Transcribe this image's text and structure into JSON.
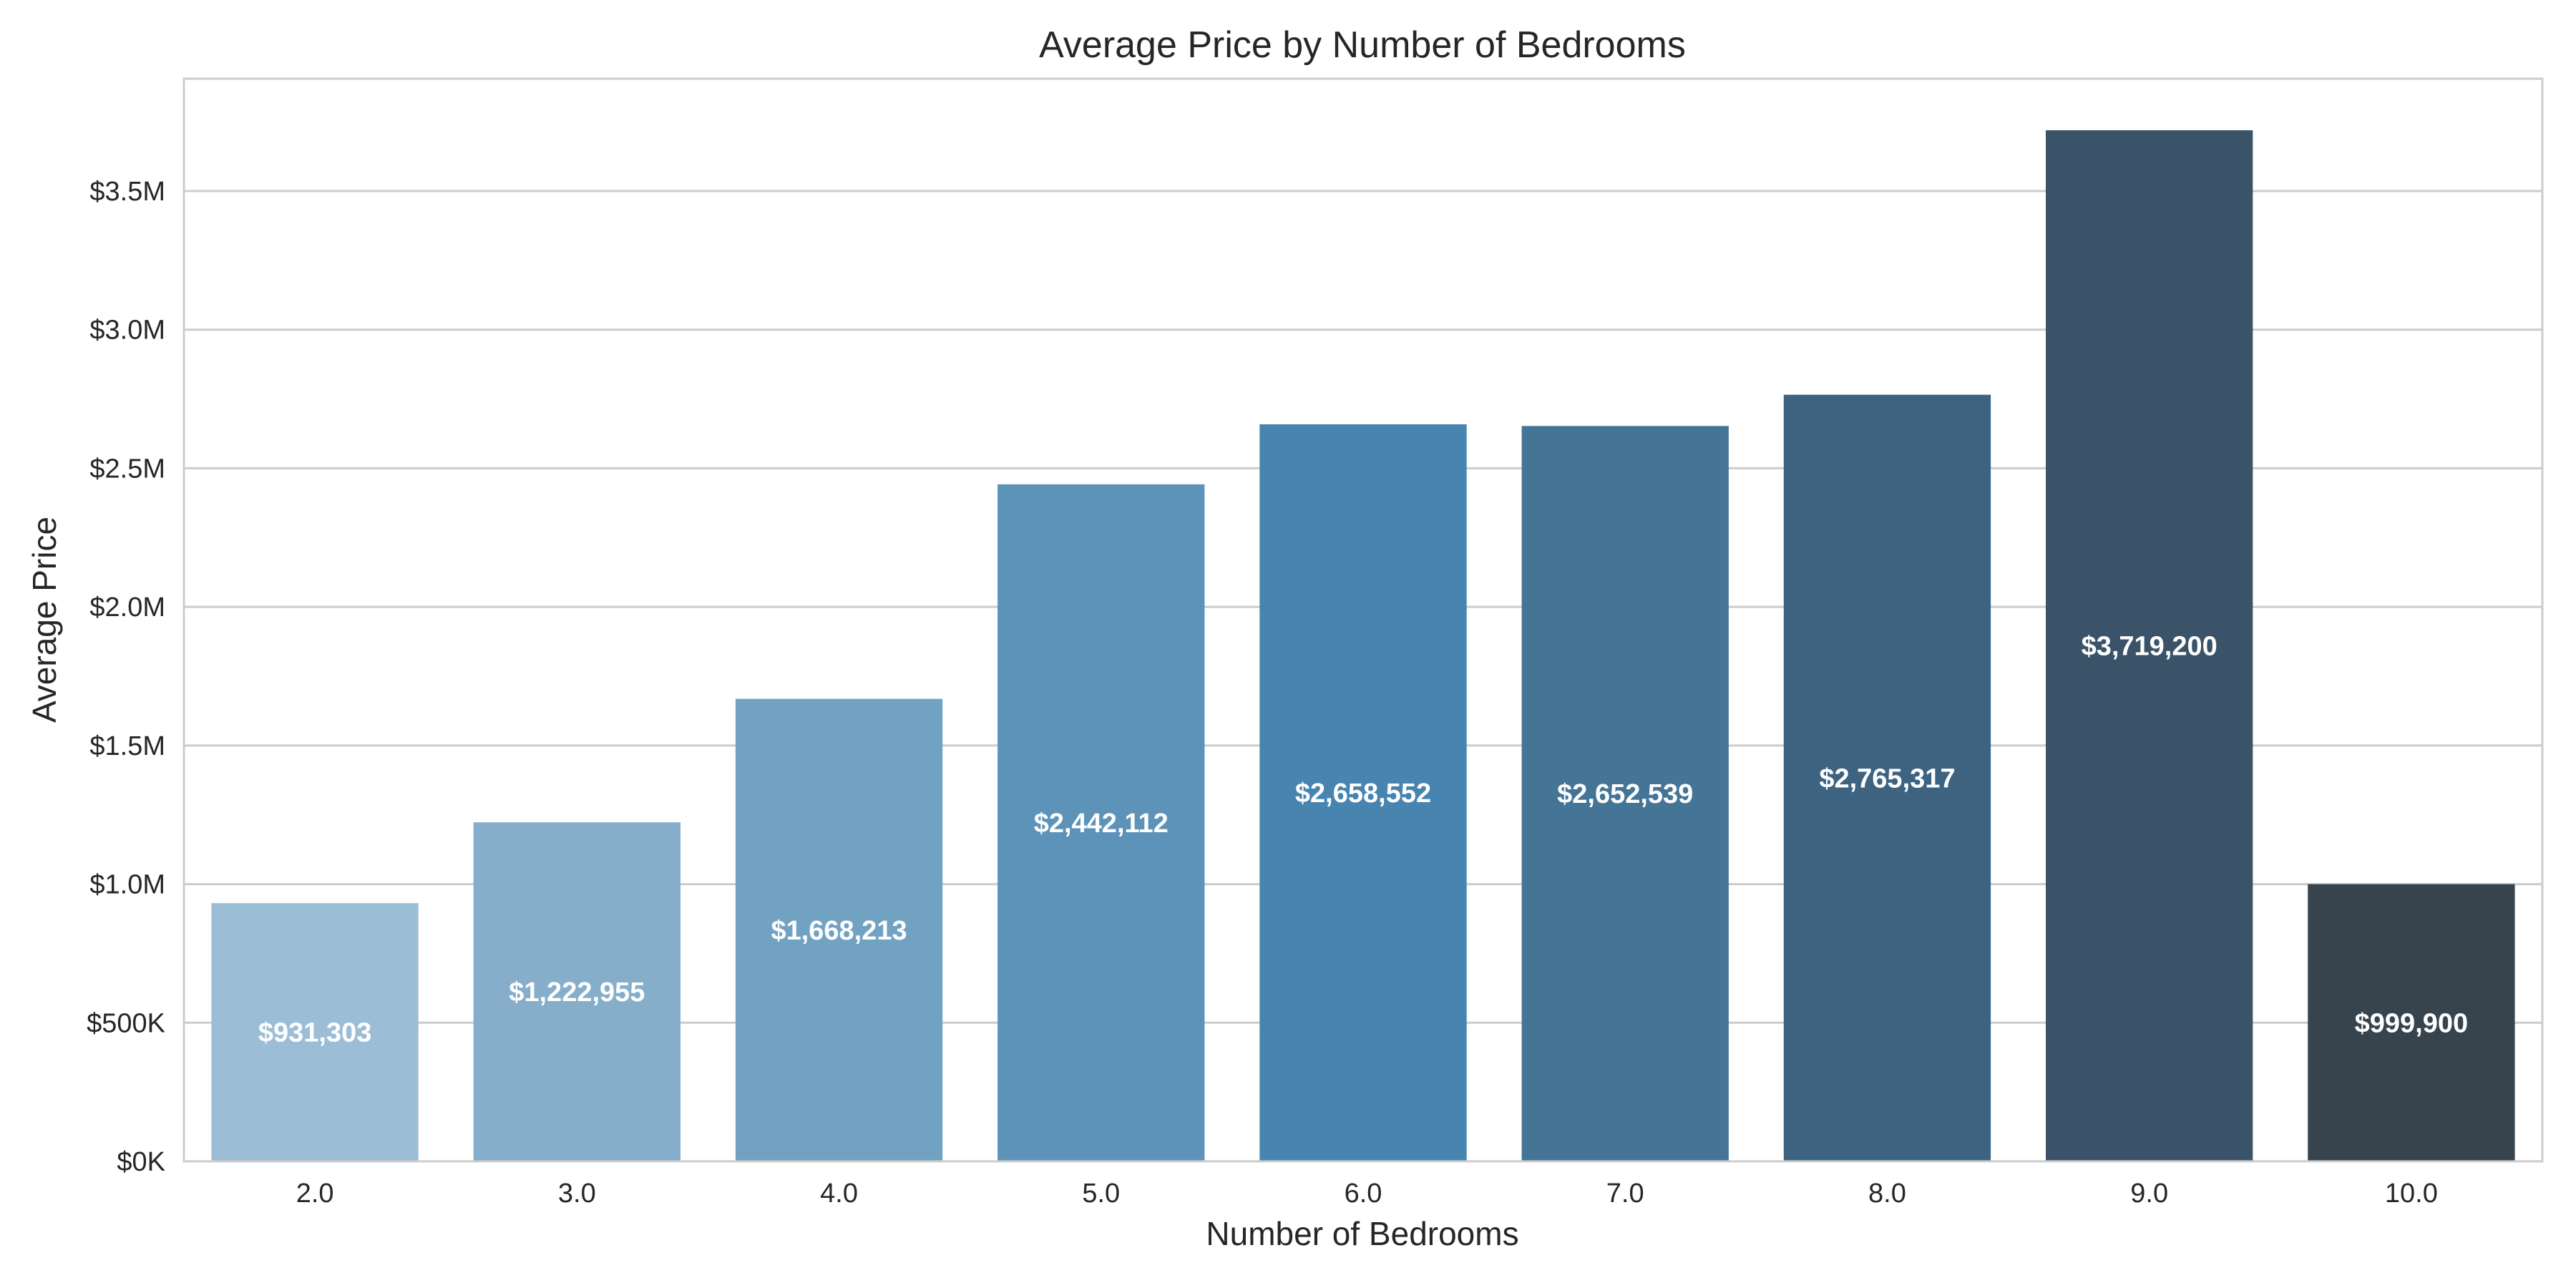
{
  "chart_data": {
    "type": "bar",
    "title": "Average Price by Number of Bedrooms",
    "xlabel": "Number of Bedrooms",
    "ylabel": "Average Price",
    "categories": [
      "2.0",
      "3.0",
      "4.0",
      "5.0",
      "6.0",
      "7.0",
      "8.0",
      "9.0",
      "10.0"
    ],
    "values": [
      931303,
      1222955,
      1668213,
      2442112,
      2658552,
      2652539,
      2765317,
      3719200,
      999900
    ],
    "data_labels": [
      "$931,303",
      "$1,222,955",
      "$1,668,213",
      "$2,442,112",
      "$2,658,552",
      "$2,652,539",
      "$2,765,317",
      "$3,719,200",
      "$999,900"
    ],
    "ylim": [
      0,
      3905160
    ],
    "yticks": [
      0,
      500000,
      1000000,
      1500000,
      2000000,
      2500000,
      3000000,
      3500000
    ],
    "ytick_labels": [
      "$0K",
      "$500K",
      "$1.0M",
      "$1.5M",
      "$2.0M",
      "$2.5M",
      "$3.0M",
      "$3.5M"
    ],
    "grid": true,
    "bar_colors": [
      "#9bbdd6",
      "#86aecb",
      "#72a2c2",
      "#5d93b9",
      "#4784b0",
      "#457596",
      "#3d6381",
      "#3b5368",
      "#37444e"
    ]
  }
}
